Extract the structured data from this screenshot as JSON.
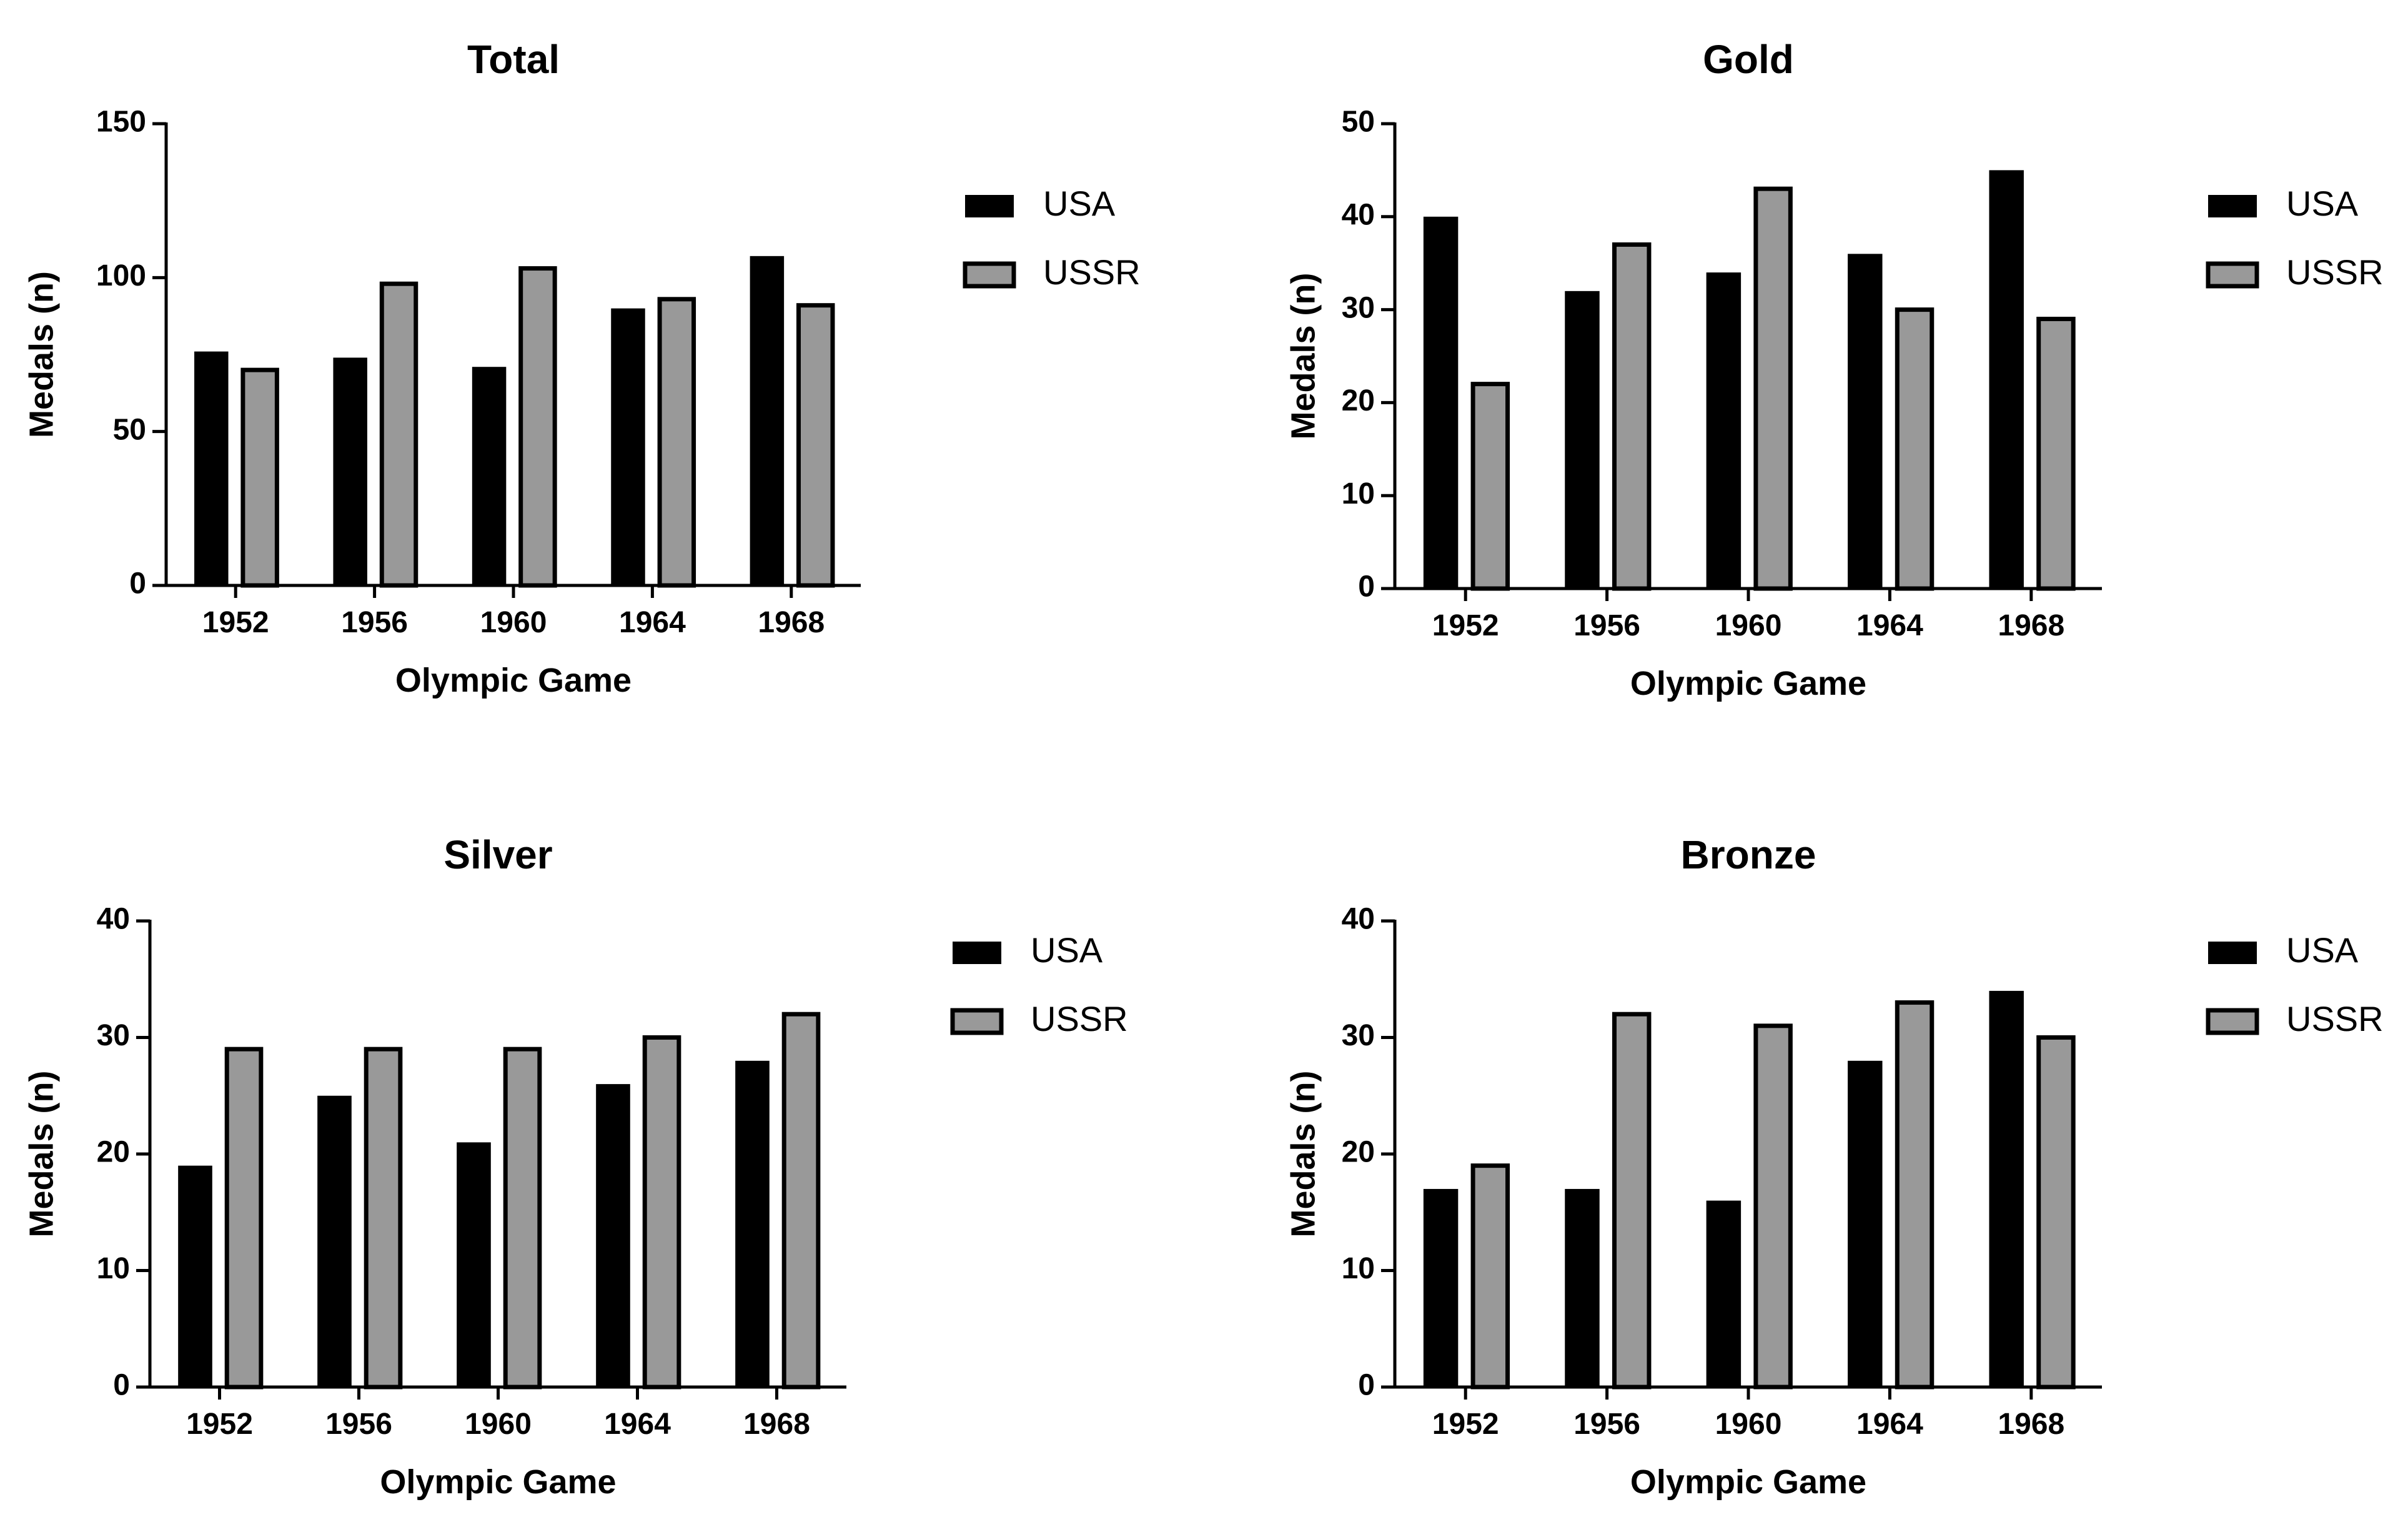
{
  "colors": {
    "USA": "#000000",
    "USSR": "#999999",
    "axis": "#000000"
  },
  "chart_data": [
    {
      "type": "bar",
      "title": "Total",
      "xlabel": "Olympic Game",
      "ylabel": "Medals (n)",
      "categories": [
        "1952",
        "1956",
        "1960",
        "1964",
        "1968"
      ],
      "ylim": [
        0,
        150
      ],
      "yticks": [
        "0",
        "50",
        "100",
        "150"
      ],
      "legend_position": "right",
      "series": [
        {
          "name": "USA",
          "values": [
            76,
            74,
            71,
            90,
            107
          ]
        },
        {
          "name": "USSR",
          "values": [
            70,
            98,
            103,
            93,
            91
          ]
        }
      ]
    },
    {
      "type": "bar",
      "title": "Gold",
      "xlabel": "Olympic Game",
      "ylabel": "Medals (n)",
      "categories": [
        "1952",
        "1956",
        "1960",
        "1964",
        "1968"
      ],
      "ylim": [
        0,
        50
      ],
      "yticks": [
        "0",
        "10",
        "20",
        "30",
        "40",
        "50"
      ],
      "legend_position": "right",
      "series": [
        {
          "name": "USA",
          "values": [
            40,
            32,
            34,
            36,
            45
          ]
        },
        {
          "name": "USSR",
          "values": [
            22,
            37,
            43,
            30,
            29
          ]
        }
      ]
    },
    {
      "type": "bar",
      "title": "Silver",
      "xlabel": "Olympic Game",
      "ylabel": "Medals (n)",
      "categories": [
        "1952",
        "1956",
        "1960",
        "1964",
        "1968"
      ],
      "ylim": [
        0,
        40
      ],
      "yticks": [
        "0",
        "10",
        "20",
        "30",
        "40"
      ],
      "legend_position": "right",
      "series": [
        {
          "name": "USA",
          "values": [
            19,
            25,
            21,
            26,
            28
          ]
        },
        {
          "name": "USSR",
          "values": [
            29,
            29,
            29,
            30,
            32
          ]
        }
      ]
    },
    {
      "type": "bar",
      "title": "Bronze",
      "xlabel": "Olympic Game",
      "ylabel": "Medals (n)",
      "categories": [
        "1952",
        "1956",
        "1960",
        "1964",
        "1968"
      ],
      "ylim": [
        0,
        40
      ],
      "yticks": [
        "0",
        "10",
        "20",
        "30",
        "40"
      ],
      "legend_position": "right",
      "series": [
        {
          "name": "USA",
          "values": [
            17,
            17,
            16,
            28,
            34
          ]
        },
        {
          "name": "USSR",
          "values": [
            19,
            32,
            31,
            33,
            30
          ]
        }
      ]
    }
  ]
}
